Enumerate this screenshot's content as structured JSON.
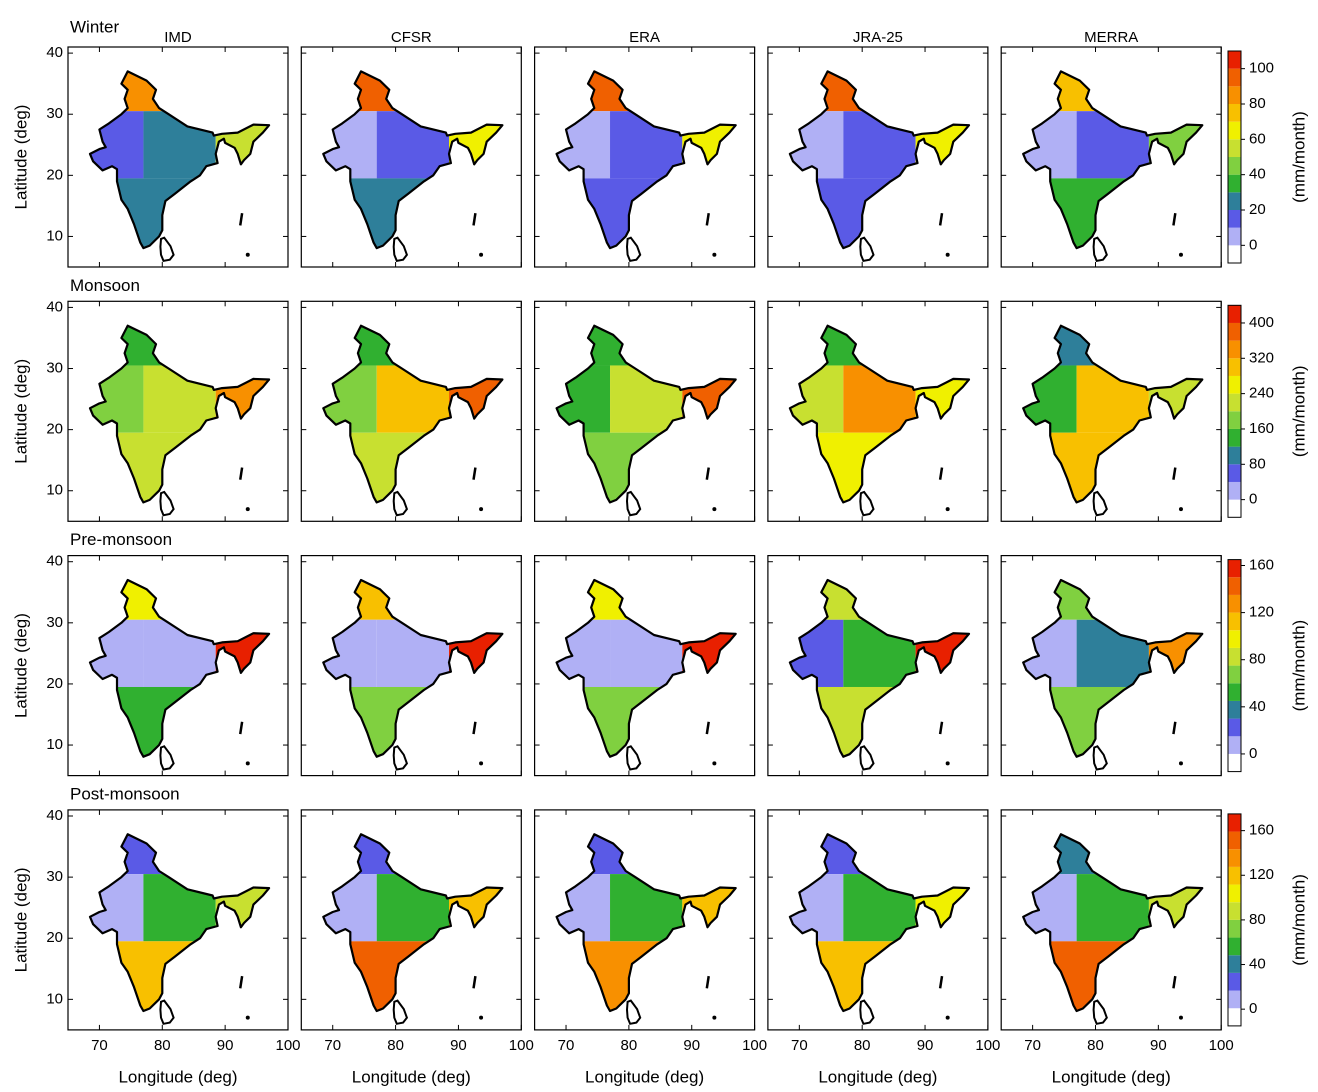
{
  "columns": [
    "IMD",
    "CFSR",
    "ERA",
    "JRA-25",
    "MERRA"
  ],
  "colors": [
    "#ffffff",
    "#b0b0f5",
    "#5a5ae6",
    "#2e7f9a",
    "#30b030",
    "#80d040",
    "#c8e030",
    "#f0f000",
    "#f8c000",
    "#f89000",
    "#f06000",
    "#e82000"
  ],
  "chart_data": [
    {
      "type": "map",
      "title": "Winter",
      "ylabel": "Latitude (deg)",
      "colorbar_label": "(mm/month)",
      "xlim": [
        65,
        100
      ],
      "ylim": [
        5,
        41
      ],
      "xticks": [
        70,
        80,
        90,
        100
      ],
      "yticks": [
        10,
        20,
        30,
        40
      ],
      "clim": [
        -10,
        110
      ],
      "cticks": [
        0,
        20,
        40,
        60,
        80,
        100
      ],
      "series": [
        {
          "values": [
            80,
            10,
            25,
            55,
            25
          ]
        },
        {
          "values": [
            95,
            5,
            15,
            60,
            25
          ]
        },
        {
          "values": [
            95,
            3,
            10,
            65,
            15
          ]
        },
        {
          "values": [
            95,
            3,
            12,
            65,
            15
          ]
        },
        {
          "values": [
            75,
            3,
            15,
            45,
            30
          ]
        }
      ]
    },
    {
      "type": "map",
      "title": "Monsoon",
      "ylabel": "Latitude (deg)",
      "colorbar_label": "(mm/month)",
      "xlim": [
        65,
        100
      ],
      "ylim": [
        5,
        41
      ],
      "xticks": [
        70,
        80,
        90,
        100
      ],
      "yticks": [
        10,
        20,
        30,
        40
      ],
      "clim": [
        -40,
        440
      ],
      "cticks": [
        0,
        80,
        160,
        240,
        320,
        400
      ],
      "series": [
        {
          "values": [
            150,
            160,
            230,
            340,
            200
          ]
        },
        {
          "values": [
            140,
            180,
            300,
            360,
            200
          ]
        },
        {
          "values": [
            120,
            120,
            220,
            360,
            160
          ]
        },
        {
          "values": [
            120,
            200,
            330,
            260,
            240
          ]
        },
        {
          "values": [
            80,
            150,
            310,
            200,
            280
          ]
        }
      ]
    },
    {
      "type": "map",
      "title": "Pre-monsoon",
      "ylabel": "Latitude (deg)",
      "colorbar_label": "(mm/month)",
      "xlim": [
        65,
        100
      ],
      "ylim": [
        5,
        41
      ],
      "xticks": [
        70,
        80,
        90,
        100
      ],
      "yticks": [
        10,
        20,
        30,
        40
      ],
      "clim": [
        -15,
        165
      ],
      "cticks": [
        0,
        40,
        80,
        120,
        160
      ],
      "series": [
        {
          "values": [
            90,
            10,
            10,
            150,
            50
          ]
        },
        {
          "values": [
            110,
            0,
            5,
            160,
            60
          ]
        },
        {
          "values": [
            90,
            0,
            5,
            160,
            60
          ]
        },
        {
          "values": [
            80,
            15,
            50,
            150,
            80
          ]
        },
        {
          "values": [
            60,
            5,
            40,
            120,
            70
          ]
        }
      ]
    },
    {
      "type": "map",
      "title": "Post-monsoon",
      "ylabel": "Latitude (deg)",
      "xlabel": "Longitude (deg)",
      "colorbar_label": "(mm/month)",
      "xlim": [
        65,
        100
      ],
      "ylim": [
        5,
        41
      ],
      "xticks": [
        70,
        80,
        90,
        100
      ],
      "yticks": [
        10,
        20,
        30,
        40
      ],
      "clim": [
        -15,
        175
      ],
      "cticks": [
        0,
        40,
        80,
        120,
        160
      ],
      "series": [
        {
          "values": [
            20,
            10,
            60,
            90,
            120
          ]
        },
        {
          "values": [
            30,
            5,
            50,
            120,
            150
          ]
        },
        {
          "values": [
            30,
            5,
            50,
            120,
            130
          ]
        },
        {
          "values": [
            30,
            10,
            50,
            100,
            120
          ]
        },
        {
          "values": [
            40,
            5,
            50,
            90,
            150
          ]
        }
      ]
    }
  ]
}
